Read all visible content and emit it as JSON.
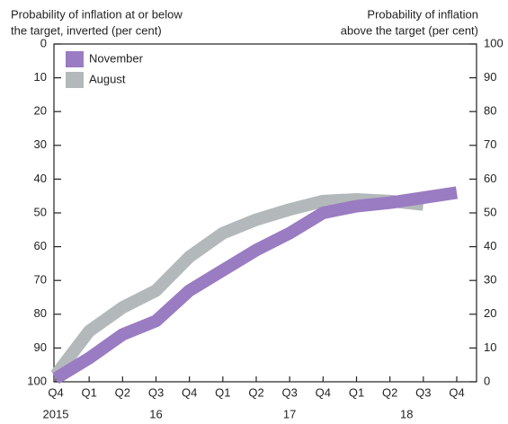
{
  "chart_data": {
    "type": "line",
    "ylabel": [
      "Probability of inflation at or below",
      "the target, inverted (per cent)"
    ],
    "y2label": [
      "Probability of inflation",
      "above the target (per cent)"
    ],
    "categories": [
      "Q4",
      "Q1",
      "Q2",
      "Q3",
      "Q4",
      "Q1",
      "Q2",
      "Q3",
      "Q4",
      "Q1",
      "Q2",
      "Q3",
      "Q4"
    ],
    "year_labels": [
      "2015",
      null,
      null,
      "16",
      null,
      null,
      null,
      "17",
      null,
      null,
      "18",
      null,
      null
    ],
    "ylim": [
      0,
      100
    ],
    "y_inverted": true,
    "yticks": [
      0,
      10,
      20,
      30,
      40,
      50,
      60,
      70,
      80,
      90,
      100
    ],
    "y2lim": [
      0,
      100
    ],
    "y2ticks": [
      0,
      10,
      20,
      30,
      40,
      50,
      60,
      70,
      80,
      90,
      100
    ],
    "series": [
      {
        "name": "August",
        "color": "#b3b9ba",
        "axis": "y2",
        "values": [
          2,
          15,
          22,
          27,
          37,
          44,
          48,
          51,
          53.5,
          54,
          53.5,
          52.5,
          null
        ]
      },
      {
        "name": "November",
        "color": "#9a7cc2",
        "axis": "y2",
        "values": [
          1,
          7,
          14,
          18,
          27,
          33,
          39,
          44,
          50,
          52,
          53,
          54.5,
          56
        ]
      }
    ]
  }
}
